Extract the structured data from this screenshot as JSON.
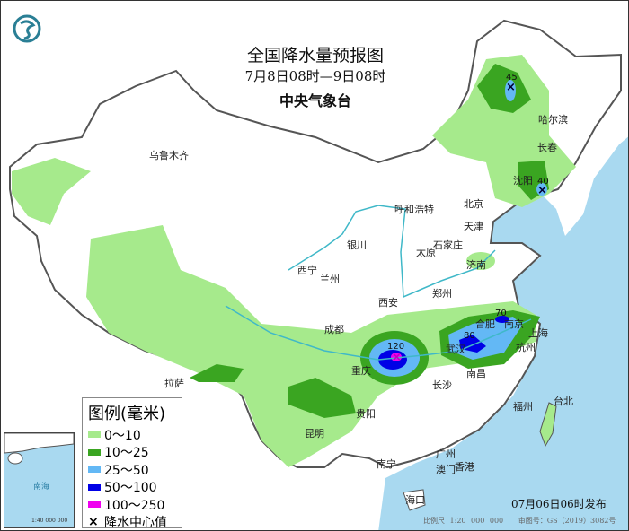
{
  "header": {
    "title": "全国降水量预报图",
    "period": "7月8日08时—9日08时",
    "agency": "中央气象台"
  },
  "logo": {
    "icon": "cma-logo-icon",
    "color": "#2a7f95"
  },
  "colors": {
    "sea": "#a9d9f0",
    "land": "#ffffff",
    "border": "#555555",
    "river": "#3fb8c8"
  },
  "legend": {
    "title": "图例(毫米)",
    "items": [
      {
        "label": "0～10",
        "color": "#a6ea8c"
      },
      {
        "label": "10～25",
        "color": "#3aa521"
      },
      {
        "label": "25～50",
        "color": "#63b8f5"
      },
      {
        "label": "50～100",
        "color": "#0000e6"
      },
      {
        "label": "100～250",
        "color": "#f000f0"
      }
    ],
    "center_label": "降水中心值"
  },
  "rain_centers": [
    {
      "value": "45"
    },
    {
      "value": "40"
    },
    {
      "value": "120"
    },
    {
      "value": "80"
    },
    {
      "value": "70"
    }
  ],
  "cities": [
    "乌鲁木齐",
    "哈尔滨",
    "长春",
    "沈阳",
    "北京",
    "天津",
    "呼和浩特",
    "石家庄",
    "太原",
    "济南",
    "银川",
    "西宁",
    "兰州",
    "西安",
    "郑州",
    "合肥",
    "南京",
    "上海",
    "杭州",
    "武汉",
    "成都",
    "重庆",
    "拉萨",
    "贵阳",
    "长沙",
    "南昌",
    "昆明",
    "福州",
    "台北",
    "南宁",
    "广州",
    "澳门",
    "香港",
    "海口"
  ],
  "footer": {
    "issued": "07月06日06时发布",
    "scale": "比例尺 1:20 000 000",
    "approval": "审图号：GS（2019）3082号"
  },
  "inset": {
    "sea_label": "南海",
    "scale": "1:40 000 000"
  }
}
